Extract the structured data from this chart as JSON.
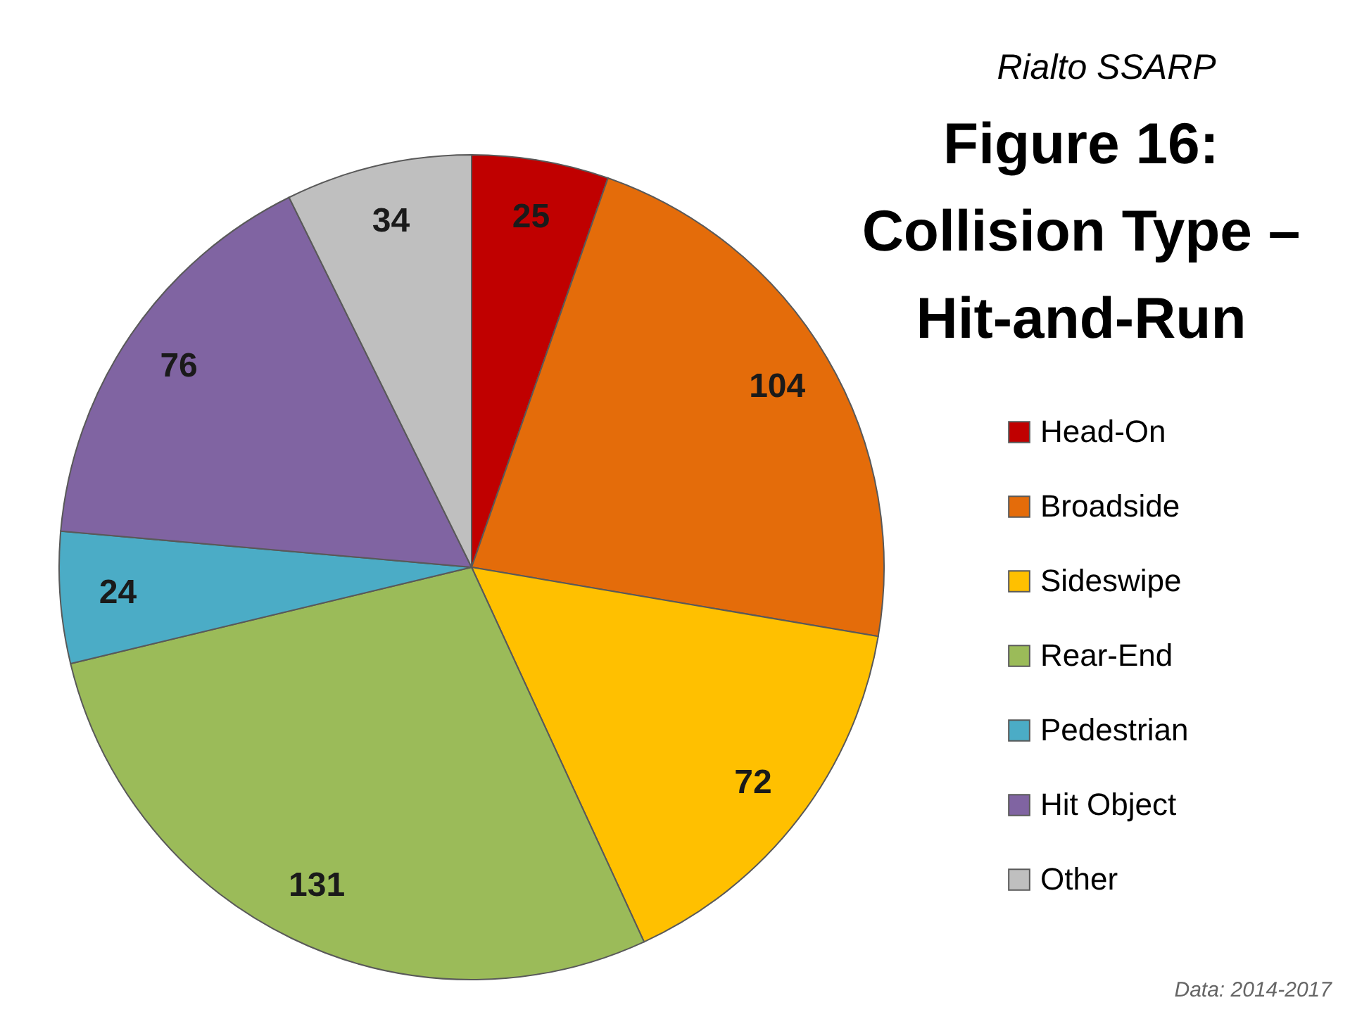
{
  "chart_data": {
    "type": "pie",
    "subtitle": "Rialto SSARP",
    "title": "Figure 16: Collision Type – Hit-and-Run",
    "categories": [
      "Head-On",
      "Broadside",
      "Sideswipe",
      "Rear-End",
      "Pedestrian",
      "Hit Object",
      "Other"
    ],
    "values": [
      25,
      104,
      72,
      131,
      24,
      76,
      34
    ],
    "colors": [
      "#c00000",
      "#e46c0a",
      "#ffc000",
      "#9bbb59",
      "#4bacc6",
      "#8064a2",
      "#bfbfbf"
    ],
    "data_labels": true,
    "legend": "right",
    "annotations": [
      "Data: 2014-2017"
    ]
  }
}
